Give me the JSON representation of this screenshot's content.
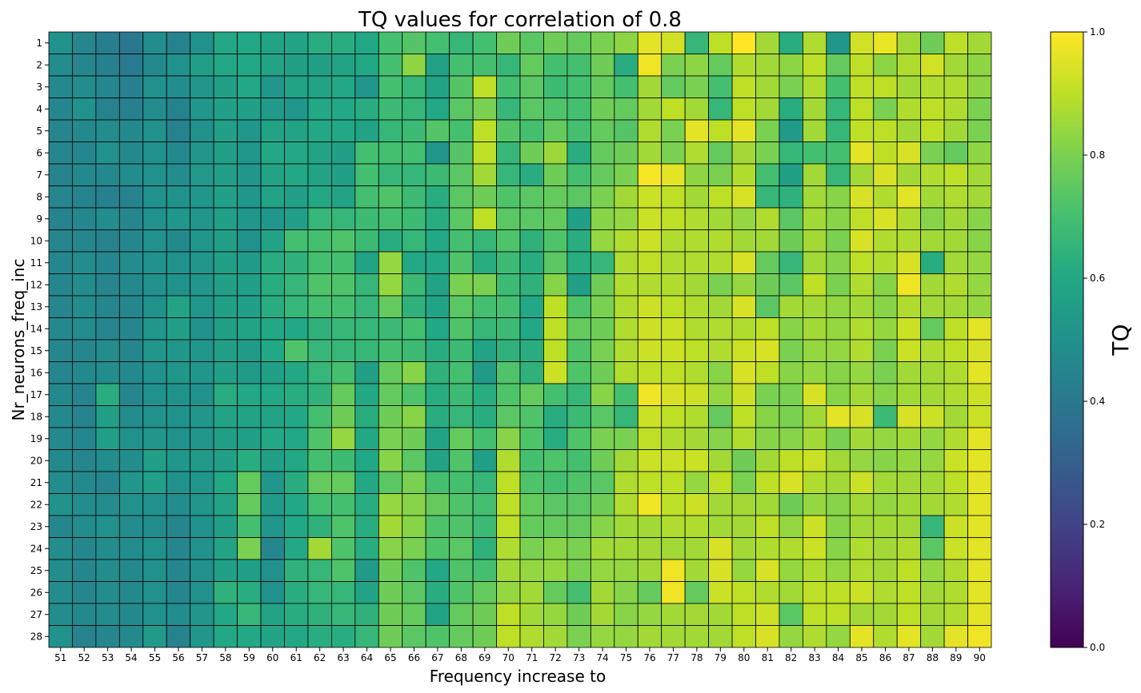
{
  "chart_data": {
    "type": "heatmap",
    "title": "TQ values for correlation of 0.8",
    "xlabel": "Frequency increase to",
    "ylabel": "Nr_neurons_freq_inc",
    "x": [
      51,
      52,
      53,
      54,
      55,
      56,
      57,
      58,
      59,
      60,
      61,
      62,
      63,
      64,
      65,
      66,
      67,
      68,
      69,
      70,
      71,
      72,
      73,
      74,
      75,
      76,
      77,
      78,
      79,
      80,
      81,
      82,
      83,
      84,
      85,
      86,
      87,
      88,
      89,
      90
    ],
    "y": [
      1,
      2,
      3,
      4,
      5,
      6,
      7,
      8,
      9,
      10,
      11,
      12,
      13,
      14,
      15,
      16,
      17,
      18,
      19,
      20,
      21,
      22,
      23,
      24,
      25,
      26,
      27,
      28
    ],
    "colorbar": {
      "label": "TQ",
      "range": [
        0,
        1
      ],
      "ticks": [
        "0.0",
        "0.2",
        "0.4",
        "0.6",
        "0.8",
        "1.0"
      ],
      "colormap": "viridis"
    },
    "grid": true,
    "values": [
      [
        0.5,
        0.45,
        0.42,
        0.4,
        0.48,
        0.44,
        0.5,
        0.6,
        0.6,
        0.58,
        0.58,
        0.62,
        0.62,
        0.6,
        0.7,
        0.73,
        0.7,
        0.66,
        0.7,
        0.78,
        0.74,
        0.78,
        0.76,
        0.8,
        0.83,
        0.96,
        0.93,
        0.66,
        0.9,
        1.0,
        0.86,
        0.62,
        0.88,
        0.52,
        0.93,
        0.97,
        0.86,
        0.78,
        0.9,
        0.86
      ],
      [
        0.48,
        0.45,
        0.43,
        0.41,
        0.47,
        0.5,
        0.56,
        0.6,
        0.6,
        0.58,
        0.56,
        0.56,
        0.58,
        0.6,
        0.7,
        0.83,
        0.57,
        0.7,
        0.7,
        0.66,
        0.76,
        0.7,
        0.7,
        0.78,
        0.62,
        0.98,
        0.8,
        0.83,
        0.76,
        0.88,
        0.86,
        0.83,
        0.9,
        0.76,
        0.9,
        0.83,
        0.88,
        0.93,
        0.86,
        0.83
      ],
      [
        0.47,
        0.48,
        0.46,
        0.43,
        0.5,
        0.48,
        0.52,
        0.56,
        0.6,
        0.52,
        0.58,
        0.58,
        0.6,
        0.52,
        0.7,
        0.66,
        0.58,
        0.73,
        0.9,
        0.7,
        0.74,
        0.68,
        0.7,
        0.76,
        0.7,
        0.86,
        0.76,
        0.8,
        0.7,
        0.9,
        0.86,
        0.8,
        0.88,
        0.7,
        0.9,
        0.9,
        0.86,
        0.88,
        0.88,
        0.83
      ],
      [
        0.46,
        0.5,
        0.44,
        0.43,
        0.48,
        0.44,
        0.52,
        0.56,
        0.56,
        0.54,
        0.52,
        0.6,
        0.6,
        0.62,
        0.68,
        0.66,
        0.6,
        0.74,
        0.8,
        0.66,
        0.74,
        0.72,
        0.7,
        0.78,
        0.76,
        0.86,
        0.9,
        0.86,
        0.66,
        0.9,
        0.86,
        0.62,
        0.86,
        0.66,
        0.9,
        0.8,
        0.88,
        0.9,
        0.88,
        0.8
      ],
      [
        0.45,
        0.47,
        0.48,
        0.47,
        0.5,
        0.44,
        0.5,
        0.56,
        0.52,
        0.58,
        0.58,
        0.6,
        0.6,
        0.58,
        0.66,
        0.68,
        0.73,
        0.7,
        0.9,
        0.73,
        0.7,
        0.76,
        0.7,
        0.76,
        0.73,
        0.88,
        0.8,
        0.96,
        0.9,
        0.96,
        0.8,
        0.54,
        0.86,
        0.66,
        0.9,
        0.9,
        0.86,
        0.9,
        0.86,
        0.8
      ],
      [
        0.45,
        0.46,
        0.5,
        0.47,
        0.5,
        0.47,
        0.52,
        0.56,
        0.52,
        0.6,
        0.6,
        0.58,
        0.56,
        0.7,
        0.7,
        0.7,
        0.52,
        0.73,
        0.9,
        0.66,
        0.78,
        0.85,
        0.62,
        0.76,
        0.78,
        0.86,
        0.8,
        0.88,
        0.76,
        0.86,
        0.8,
        0.66,
        0.7,
        0.7,
        0.96,
        0.9,
        0.94,
        0.8,
        0.76,
        0.83
      ],
      [
        0.44,
        0.47,
        0.47,
        0.48,
        0.5,
        0.48,
        0.53,
        0.55,
        0.52,
        0.58,
        0.6,
        0.58,
        0.56,
        0.7,
        0.66,
        0.66,
        0.68,
        0.74,
        0.86,
        0.66,
        0.62,
        0.78,
        0.7,
        0.76,
        0.8,
        0.99,
        0.96,
        0.83,
        0.8,
        0.88,
        0.7,
        0.56,
        0.86,
        0.66,
        0.86,
        0.94,
        0.86,
        0.88,
        0.9,
        0.86
      ],
      [
        0.45,
        0.44,
        0.43,
        0.44,
        0.5,
        0.5,
        0.52,
        0.56,
        0.52,
        0.58,
        0.56,
        0.6,
        0.58,
        0.7,
        0.72,
        0.68,
        0.62,
        0.74,
        0.78,
        0.72,
        0.74,
        0.76,
        0.74,
        0.8,
        0.86,
        0.92,
        0.9,
        0.86,
        0.9,
        0.94,
        0.66,
        0.64,
        0.86,
        0.82,
        0.94,
        0.88,
        0.96,
        0.86,
        0.88,
        0.86
      ],
      [
        0.44,
        0.46,
        0.48,
        0.46,
        0.5,
        0.52,
        0.52,
        0.56,
        0.52,
        0.52,
        0.56,
        0.66,
        0.66,
        0.68,
        0.7,
        0.68,
        0.62,
        0.74,
        0.9,
        0.74,
        0.74,
        0.76,
        0.56,
        0.82,
        0.84,
        0.92,
        0.9,
        0.88,
        0.86,
        0.84,
        0.88,
        0.74,
        0.86,
        0.82,
        0.9,
        0.94,
        0.88,
        0.82,
        0.86,
        0.82
      ],
      [
        0.45,
        0.45,
        0.44,
        0.46,
        0.5,
        0.47,
        0.52,
        0.56,
        0.5,
        0.58,
        0.7,
        0.7,
        0.72,
        0.68,
        0.62,
        0.66,
        0.6,
        0.7,
        0.66,
        0.72,
        0.64,
        0.72,
        0.62,
        0.84,
        0.88,
        0.92,
        0.88,
        0.88,
        0.88,
        0.86,
        0.86,
        0.78,
        0.86,
        0.8,
        0.94,
        0.88,
        0.88,
        0.86,
        0.86,
        0.82
      ],
      [
        0.46,
        0.48,
        0.46,
        0.48,
        0.5,
        0.5,
        0.52,
        0.56,
        0.54,
        0.62,
        0.64,
        0.7,
        0.7,
        0.58,
        0.84,
        0.6,
        0.6,
        0.72,
        0.62,
        0.68,
        0.62,
        0.74,
        0.62,
        0.66,
        0.88,
        0.9,
        0.88,
        0.88,
        0.88,
        0.94,
        0.76,
        0.66,
        0.86,
        0.82,
        0.9,
        0.88,
        0.94,
        0.62,
        0.86,
        0.84
      ],
      [
        0.46,
        0.48,
        0.45,
        0.47,
        0.5,
        0.5,
        0.52,
        0.56,
        0.56,
        0.62,
        0.66,
        0.72,
        0.72,
        0.66,
        0.84,
        0.68,
        0.58,
        0.8,
        0.8,
        0.68,
        0.64,
        0.82,
        0.56,
        0.78,
        0.88,
        0.88,
        0.88,
        0.86,
        0.8,
        0.84,
        0.78,
        0.74,
        0.9,
        0.8,
        0.88,
        0.82,
        0.98,
        0.86,
        0.88,
        0.84
      ],
      [
        0.45,
        0.48,
        0.46,
        0.46,
        0.5,
        0.58,
        0.52,
        0.56,
        0.56,
        0.62,
        0.66,
        0.7,
        0.7,
        0.66,
        0.76,
        0.64,
        0.58,
        0.74,
        0.7,
        0.7,
        0.6,
        0.9,
        0.72,
        0.8,
        0.88,
        0.92,
        0.9,
        0.88,
        0.86,
        0.94,
        0.74,
        0.86,
        0.86,
        0.84,
        0.86,
        0.82,
        0.88,
        0.86,
        0.86,
        0.84
      ],
      [
        0.47,
        0.48,
        0.45,
        0.46,
        0.52,
        0.56,
        0.5,
        0.56,
        0.58,
        0.6,
        0.6,
        0.64,
        0.66,
        0.66,
        0.68,
        0.7,
        0.6,
        0.72,
        0.66,
        0.68,
        0.6,
        0.9,
        0.76,
        0.78,
        0.88,
        0.92,
        0.92,
        0.88,
        0.88,
        0.88,
        0.9,
        0.82,
        0.86,
        0.84,
        0.88,
        0.84,
        0.92,
        0.76,
        0.9,
        0.96
      ],
      [
        0.46,
        0.46,
        0.48,
        0.46,
        0.52,
        0.52,
        0.52,
        0.56,
        0.54,
        0.6,
        0.72,
        0.66,
        0.66,
        0.66,
        0.7,
        0.68,
        0.62,
        0.68,
        0.58,
        0.64,
        0.62,
        0.9,
        0.72,
        0.8,
        0.88,
        0.92,
        0.92,
        0.9,
        0.88,
        0.92,
        0.94,
        0.8,
        0.84,
        0.84,
        0.88,
        0.8,
        0.92,
        0.88,
        0.9,
        0.94
      ],
      [
        0.46,
        0.47,
        0.48,
        0.47,
        0.5,
        0.52,
        0.52,
        0.56,
        0.54,
        0.56,
        0.6,
        0.66,
        0.7,
        0.56,
        0.76,
        0.82,
        0.64,
        0.7,
        0.54,
        0.72,
        0.64,
        0.92,
        0.72,
        0.78,
        0.88,
        0.9,
        0.9,
        0.88,
        0.82,
        0.94,
        0.9,
        0.82,
        0.84,
        0.82,
        0.84,
        0.8,
        0.86,
        0.86,
        0.88,
        0.96
      ],
      [
        0.47,
        0.44,
        0.62,
        0.46,
        0.5,
        0.5,
        0.5,
        0.62,
        0.6,
        0.6,
        0.62,
        0.64,
        0.76,
        0.6,
        0.76,
        0.72,
        0.62,
        0.68,
        0.62,
        0.72,
        0.76,
        0.7,
        0.66,
        0.82,
        0.7,
        0.98,
        0.94,
        0.92,
        0.84,
        0.92,
        0.8,
        0.8,
        0.94,
        0.82,
        0.86,
        0.82,
        0.86,
        0.86,
        0.88,
        0.92
      ],
      [
        0.47,
        0.44,
        0.56,
        0.48,
        0.5,
        0.5,
        0.52,
        0.58,
        0.58,
        0.58,
        0.6,
        0.7,
        0.78,
        0.62,
        0.78,
        0.82,
        0.62,
        0.66,
        0.62,
        0.74,
        0.72,
        0.62,
        0.68,
        0.74,
        0.66,
        0.92,
        0.9,
        0.88,
        0.76,
        0.9,
        0.82,
        0.8,
        0.86,
        0.96,
        0.94,
        0.68,
        0.94,
        0.92,
        0.86,
        0.92
      ],
      [
        0.47,
        0.46,
        0.56,
        0.5,
        0.52,
        0.5,
        0.52,
        0.56,
        0.56,
        0.6,
        0.6,
        0.72,
        0.84,
        0.6,
        0.8,
        0.78,
        0.58,
        0.76,
        0.7,
        0.82,
        0.72,
        0.62,
        0.72,
        0.8,
        0.8,
        0.9,
        0.88,
        0.86,
        0.82,
        0.88,
        0.82,
        0.82,
        0.86,
        0.8,
        0.86,
        0.84,
        0.86,
        0.84,
        0.88,
        0.96
      ],
      [
        0.47,
        0.45,
        0.48,
        0.48,
        0.56,
        0.52,
        0.54,
        0.56,
        0.62,
        0.56,
        0.6,
        0.7,
        0.68,
        0.6,
        0.82,
        0.74,
        0.58,
        0.72,
        0.56,
        0.88,
        0.7,
        0.72,
        0.7,
        0.78,
        0.86,
        0.92,
        0.92,
        0.92,
        0.86,
        0.78,
        0.86,
        0.9,
        0.92,
        0.86,
        0.84,
        0.82,
        0.84,
        0.84,
        0.92,
        0.96
      ],
      [
        0.48,
        0.47,
        0.46,
        0.52,
        0.56,
        0.5,
        0.52,
        0.6,
        0.76,
        0.52,
        0.62,
        0.76,
        0.76,
        0.6,
        0.74,
        0.8,
        0.7,
        0.7,
        0.66,
        0.9,
        0.72,
        0.7,
        0.72,
        0.74,
        0.88,
        0.9,
        0.9,
        0.84,
        0.9,
        0.8,
        0.9,
        0.94,
        0.88,
        0.86,
        0.92,
        0.86,
        0.86,
        0.86,
        0.9,
        0.96
      ],
      [
        0.5,
        0.48,
        0.48,
        0.5,
        0.5,
        0.48,
        0.52,
        0.58,
        0.76,
        0.54,
        0.6,
        0.7,
        0.7,
        0.62,
        0.84,
        0.82,
        0.76,
        0.72,
        0.7,
        0.9,
        0.76,
        0.74,
        0.74,
        0.78,
        0.88,
        0.98,
        0.9,
        0.92,
        0.86,
        0.86,
        0.86,
        0.78,
        0.84,
        0.82,
        0.86,
        0.84,
        0.86,
        0.86,
        0.88,
        0.96
      ],
      [
        0.46,
        0.48,
        0.5,
        0.48,
        0.48,
        0.46,
        0.5,
        0.56,
        0.7,
        0.52,
        0.6,
        0.64,
        0.72,
        0.62,
        0.86,
        0.82,
        0.72,
        0.72,
        0.68,
        0.9,
        0.76,
        0.76,
        0.76,
        0.82,
        0.86,
        0.86,
        0.88,
        0.88,
        0.86,
        0.86,
        0.9,
        0.84,
        0.92,
        0.82,
        0.86,
        0.86,
        0.86,
        0.66,
        0.92,
        0.96
      ],
      [
        0.48,
        0.46,
        0.48,
        0.48,
        0.5,
        0.46,
        0.5,
        0.58,
        0.8,
        0.46,
        0.6,
        0.86,
        0.72,
        0.62,
        0.82,
        0.8,
        0.72,
        0.74,
        0.64,
        0.88,
        0.8,
        0.82,
        0.8,
        0.86,
        0.86,
        0.86,
        0.86,
        0.86,
        0.94,
        0.86,
        0.88,
        0.88,
        0.92,
        0.82,
        0.88,
        0.86,
        0.88,
        0.74,
        0.92,
        0.96
      ],
      [
        0.48,
        0.46,
        0.48,
        0.47,
        0.5,
        0.46,
        0.5,
        0.56,
        0.56,
        0.5,
        0.64,
        0.66,
        0.72,
        0.54,
        0.78,
        0.72,
        0.6,
        0.72,
        0.7,
        0.86,
        0.84,
        0.84,
        0.8,
        0.84,
        0.84,
        0.86,
        0.98,
        0.86,
        0.94,
        0.84,
        0.94,
        0.84,
        0.88,
        0.84,
        0.88,
        0.86,
        0.9,
        0.84,
        0.88,
        0.96
      ],
      [
        0.48,
        0.46,
        0.48,
        0.47,
        0.5,
        0.46,
        0.5,
        0.64,
        0.62,
        0.5,
        0.62,
        0.66,
        0.66,
        0.58,
        0.78,
        0.74,
        0.62,
        0.72,
        0.76,
        0.84,
        0.86,
        0.76,
        0.7,
        0.86,
        0.82,
        0.76,
        0.98,
        0.76,
        0.92,
        0.9,
        0.88,
        0.86,
        0.9,
        0.9,
        0.92,
        0.88,
        0.9,
        0.86,
        0.88,
        0.96
      ],
      [
        0.48,
        0.47,
        0.48,
        0.47,
        0.5,
        0.48,
        0.52,
        0.6,
        0.66,
        0.58,
        0.62,
        0.64,
        0.66,
        0.64,
        0.78,
        0.76,
        0.58,
        0.76,
        0.78,
        0.9,
        0.86,
        0.84,
        0.78,
        0.86,
        0.82,
        0.84,
        0.86,
        0.86,
        0.86,
        0.9,
        0.92,
        0.74,
        0.9,
        0.9,
        0.86,
        0.86,
        0.9,
        0.86,
        0.88,
        0.96
      ],
      [
        0.5,
        0.44,
        0.46,
        0.47,
        0.54,
        0.44,
        0.52,
        0.6,
        0.6,
        0.58,
        0.6,
        0.62,
        0.62,
        0.66,
        0.78,
        0.74,
        0.72,
        0.76,
        0.78,
        0.9,
        0.88,
        0.86,
        0.8,
        0.84,
        0.84,
        0.86,
        0.86,
        0.86,
        0.86,
        0.9,
        0.94,
        0.84,
        0.88,
        0.84,
        0.96,
        0.88,
        0.96,
        0.86,
        0.96,
        0.98
      ]
    ]
  }
}
